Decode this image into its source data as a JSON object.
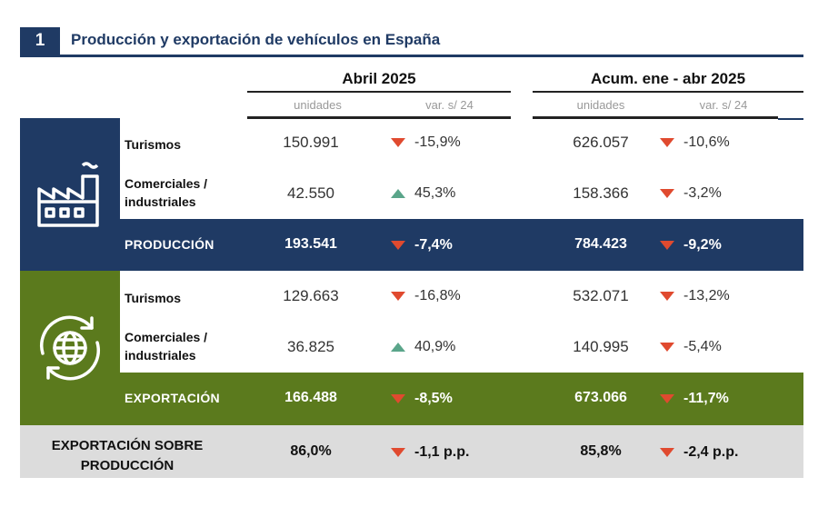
{
  "title": {
    "number": "1",
    "text": "Producción y exportación de vehículos en España"
  },
  "columns": {
    "period1": "Abril 2025",
    "period2": "Acum. ene - abr 2025",
    "units": "unidades",
    "variation": "var. s/ 24"
  },
  "colors": {
    "navy": "#1f3a64",
    "green": "#5b7a1d",
    "grey": "#dcdcdc",
    "down": "#e04a2f",
    "up": "#5aa58a"
  },
  "produccion": {
    "icon": "factory-icon",
    "rows": [
      {
        "label": "Turismos",
        "u1": "150.991",
        "v1": "-15,9%",
        "d1": "down",
        "u2": "626.057",
        "v2": "-10,6%",
        "d2": "down"
      },
      {
        "label": "Comerciales / industriales",
        "u1": "42.550",
        "v1": "45,3%",
        "d1": "up",
        "u2": "158.366",
        "v2": "-3,2%",
        "d2": "down"
      }
    ],
    "total": {
      "label": "PRODUCCIÓN",
      "u1": "193.541",
      "v1": "-7,4%",
      "d1": "down",
      "u2": "784.423",
      "v2": "-9,2%",
      "d2": "down"
    }
  },
  "exportacion": {
    "icon": "globe-export-icon",
    "rows": [
      {
        "label": "Turismos",
        "u1": "129.663",
        "v1": "-16,8%",
        "d1": "down",
        "u2": "532.071",
        "v2": "-13,2%",
        "d2": "down"
      },
      {
        "label": "Comerciales / industriales",
        "u1": "36.825",
        "v1": "40,9%",
        "d1": "up",
        "u2": "140.995",
        "v2": "-5,4%",
        "d2": "down"
      }
    ],
    "total": {
      "label": "EXPORTACIÓN",
      "u1": "166.488",
      "v1": "-8,5%",
      "d1": "down",
      "u2": "673.066",
      "v2": "-11,7%",
      "d2": "down"
    }
  },
  "ratio": {
    "label": "EXPORTACIÓN SOBRE PRODUCCIÓN",
    "u1": "86,0%",
    "v1": "-1,1 p.p.",
    "d1": "down",
    "u2": "85,8%",
    "v2": "-2,4 p.p.",
    "d2": "down"
  }
}
